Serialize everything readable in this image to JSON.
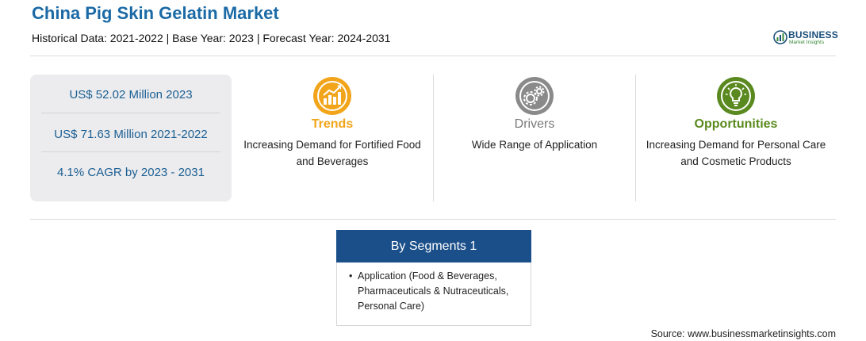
{
  "header": {
    "title": "China Pig Skin Gelatin Market",
    "subtitle": "Historical Data: 2021-2022 | Base Year: 2023 | Forecast Year: 2024-2031"
  },
  "logo": {
    "main": "BUSINESS",
    "sub": "Market Insights",
    "icon": "globe-bars-icon"
  },
  "stats": [
    "US$ 52.02 Million 2023",
    "US$ 71.63 Million 2021-2022",
    "4.1% CAGR by 2023 - 2031"
  ],
  "features": {
    "trends": {
      "label": "Trends",
      "text": "Increasing Demand for Fortified Food and Beverages",
      "icon": "growth-chart-icon",
      "color": "#f2a51a"
    },
    "drivers": {
      "label": "Drivers",
      "text": "Wide Range of Application",
      "icon": "gears-icon",
      "color": "#7a7a7a"
    },
    "opportunities": {
      "label": "Opportunities",
      "text": "Increasing Demand for Personal Care and Cosmetic Products",
      "icon": "lightbulb-icon",
      "color": "#5a8a1f"
    }
  },
  "segments": {
    "title": "By Segments 1",
    "items": [
      "Application (Food & Beverages, Pharmaceuticals & Nutraceuticals, Personal Care)"
    ],
    "header_color": "#1b4f8a"
  },
  "source": "Source: www.businessmarketinsights.com"
}
